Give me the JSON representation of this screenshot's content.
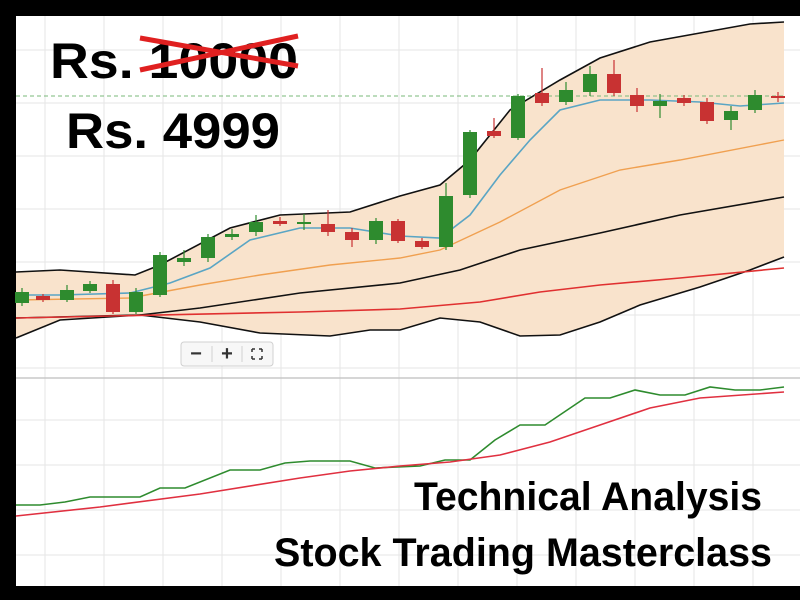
{
  "price": {
    "original": "Rs. 10000",
    "discounted": "Rs. 4999"
  },
  "course": {
    "title": "Technical Analysis",
    "subtitle": "Stock Trading Masterclass"
  },
  "zoom_controls": [
    "−",
    "+"
  ]
}
